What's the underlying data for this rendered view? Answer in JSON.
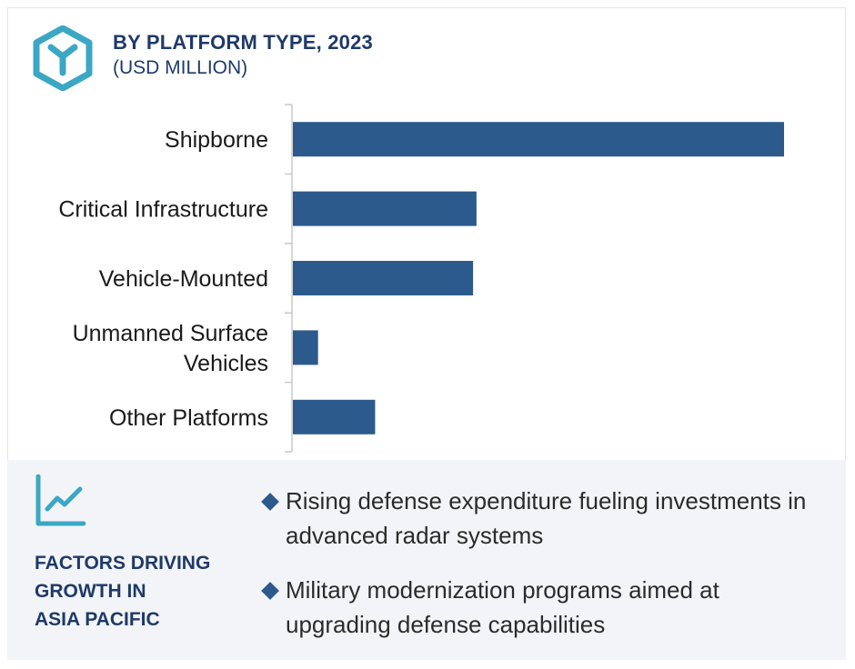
{
  "header": {
    "title": "BY PLATFORM TYPE, 2023",
    "subtitle": "(USD MILLION)",
    "icon": "cube-y-icon"
  },
  "colors": {
    "bar": "#2c5a8c",
    "title": "#1f3a68",
    "icon": "#3ba7c4",
    "axis": "#c8c8c8",
    "panel_bg": "#f2f4f7"
  },
  "chart_data": {
    "type": "bar",
    "orientation": "horizontal",
    "title": "BY PLATFORM TYPE, 2023",
    "subtitle": "(USD MILLION)",
    "categories": [
      [
        "Shipborne"
      ],
      [
        "Critical Infrastructure"
      ],
      [
        "Vehicle-Mounted"
      ],
      [
        "Unmanned Surface",
        "Vehicles"
      ],
      [
        "Other Platforms"
      ]
    ],
    "values": [
      100,
      37.5,
      36.8,
      5.3,
      16.9
    ],
    "xlim": [
      0,
      100
    ],
    "grid": false,
    "legend": "none"
  },
  "factors": {
    "icon": "line-chart-icon",
    "heading": [
      "FACTORS DRIVING",
      "GROWTH IN",
      "ASIA PACIFIC"
    ],
    "bullets": [
      "Rising defense expenditure fueling investments in advanced radar systems",
      "Military modernization programs aimed at upgrading defense capabilities"
    ]
  }
}
